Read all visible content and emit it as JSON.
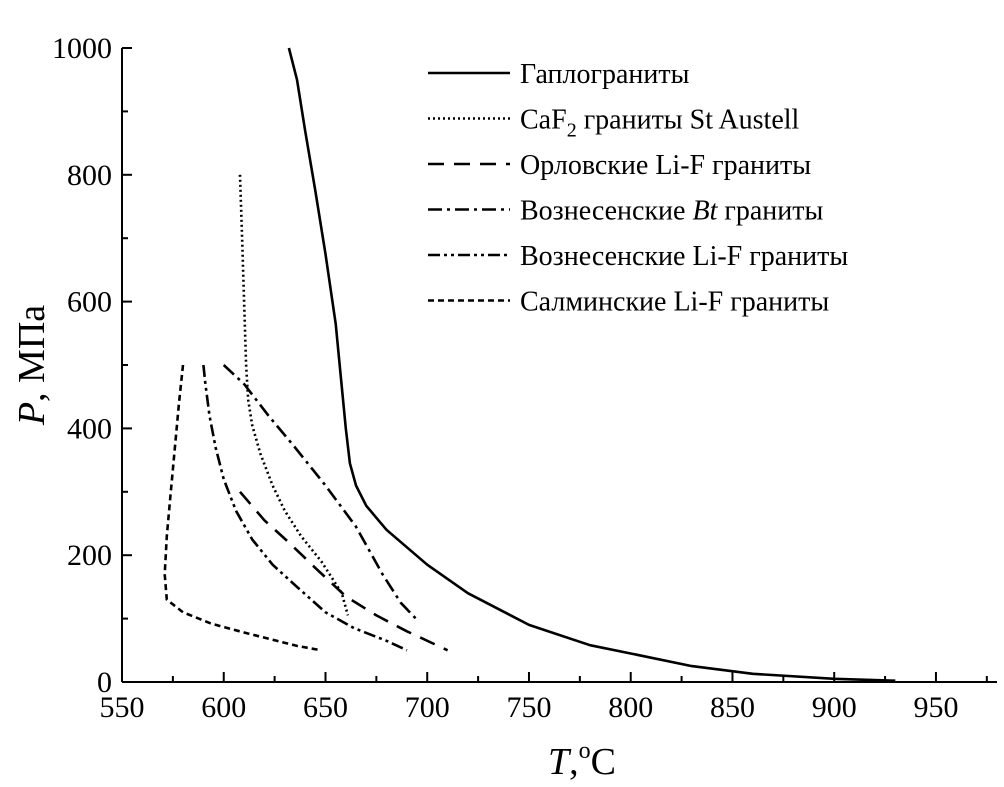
{
  "chart_data": {
    "type": "line",
    "xlabel": {
      "symbol": "T",
      "sep": ",",
      "sup": "o",
      "unit": "C"
    },
    "ylabel": {
      "symbol": "P",
      "unit": ", МПа"
    },
    "xlim": [
      550,
      980
    ],
    "ylim": [
      0,
      1000
    ],
    "x_ticks": [
      550,
      600,
      650,
      700,
      750,
      800,
      850,
      900,
      950
    ],
    "y_ticks": [
      0,
      200,
      400,
      600,
      800,
      1000
    ],
    "grid": false,
    "legend_position": "top-right",
    "series": [
      {
        "key": "haplo",
        "name": "Гаплограниты",
        "dash": "solid",
        "points": [
          [
            632,
            1000
          ],
          [
            636,
            950
          ],
          [
            640,
            870
          ],
          [
            645,
            775
          ],
          [
            650,
            675
          ],
          [
            655,
            565
          ],
          [
            660,
            400
          ],
          [
            662,
            345
          ],
          [
            665,
            310
          ],
          [
            670,
            278
          ],
          [
            680,
            240
          ],
          [
            700,
            185
          ],
          [
            720,
            140
          ],
          [
            750,
            90
          ],
          [
            780,
            58
          ],
          [
            800,
            45
          ],
          [
            830,
            25
          ],
          [
            860,
            13
          ],
          [
            900,
            5
          ],
          [
            930,
            2
          ]
        ]
      },
      {
        "key": "caf2",
        "name": "CaF",
        "name_sub": "2",
        "name_rest": " граниты  St Austell",
        "dash": "dotted",
        "points": [
          [
            608,
            800
          ],
          [
            609,
            700
          ],
          [
            610,
            600
          ],
          [
            611,
            500
          ],
          [
            612,
            445
          ],
          [
            614,
            405
          ],
          [
            618,
            360
          ],
          [
            624,
            310
          ],
          [
            630,
            270
          ],
          [
            638,
            230
          ],
          [
            648,
            190
          ],
          [
            658,
            140
          ],
          [
            661,
            105
          ]
        ]
      },
      {
        "key": "orlov",
        "name": "Орловские Li-F граниты",
        "dash": "dashed",
        "points": [
          [
            608,
            300
          ],
          [
            620,
            255
          ],
          [
            632,
            220
          ],
          [
            645,
            180
          ],
          [
            660,
            135
          ],
          [
            675,
            105
          ],
          [
            690,
            80
          ],
          [
            710,
            50
          ]
        ]
      },
      {
        "key": "vozn_bt",
        "name_prefix": "Вознесенские ",
        "name_italic": "Bt",
        "name_rest": " граниты",
        "dash": "dashdot",
        "points": [
          [
            600,
            500
          ],
          [
            610,
            470
          ],
          [
            622,
            420
          ],
          [
            635,
            370
          ],
          [
            650,
            310
          ],
          [
            665,
            245
          ],
          [
            678,
            170
          ],
          [
            687,
            125
          ],
          [
            695,
            98
          ]
        ]
      },
      {
        "key": "vozn_lif",
        "name": "Вознесенские Li-F граниты",
        "dash": "dashdotdot",
        "points": [
          [
            590,
            500
          ],
          [
            591,
            470
          ],
          [
            593,
            420
          ],
          [
            596,
            370
          ],
          [
            600,
            320
          ],
          [
            606,
            270
          ],
          [
            614,
            225
          ],
          [
            624,
            185
          ],
          [
            636,
            150
          ],
          [
            650,
            110
          ],
          [
            664,
            85
          ],
          [
            680,
            65
          ],
          [
            690,
            50
          ]
        ]
      },
      {
        "key": "salmi",
        "name": "Салминские Li-F граниты",
        "dash": "shortdash",
        "points": [
          [
            580,
            500
          ],
          [
            578,
            440
          ],
          [
            576,
            370
          ],
          [
            574,
            300
          ],
          [
            572,
            230
          ],
          [
            571,
            170
          ],
          [
            572,
            130
          ],
          [
            580,
            110
          ],
          [
            594,
            92
          ],
          [
            610,
            78
          ],
          [
            626,
            65
          ],
          [
            636,
            57
          ],
          [
            648,
            50
          ]
        ]
      }
    ]
  }
}
